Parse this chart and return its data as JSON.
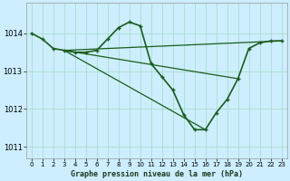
{
  "title": "Graphe pression niveau de la mer (hPa)",
  "background_color": "#cceeff",
  "grid_color": "#aaddcc",
  "line_color_dark": "#1a5c1a",
  "line_color_med": "#2d7a2d",
  "xlim": [
    -0.5,
    23.5
  ],
  "ylim": [
    1010.7,
    1014.8
  ],
  "yticks": [
    1011,
    1012,
    1013,
    1014
  ],
  "xticks": [
    0,
    1,
    2,
    3,
    4,
    5,
    6,
    7,
    8,
    9,
    10,
    11,
    12,
    13,
    14,
    15,
    16,
    17,
    18,
    19,
    20,
    21,
    22,
    23
  ],
  "curve1_x": [
    0,
    1,
    2,
    3,
    4,
    5,
    6,
    7,
    8,
    9,
    10,
    11,
    12,
    13,
    14,
    15,
    16,
    17,
    18,
    19,
    20,
    21,
    22,
    23
  ],
  "curve1_y": [
    1014.0,
    1013.85,
    1013.6,
    1013.55,
    1013.5,
    1013.5,
    1013.55,
    1013.85,
    1014.15,
    1014.3,
    1014.2,
    1013.2,
    1012.85,
    1012.5,
    1011.85,
    1011.45,
    1011.45,
    1011.9,
    1012.25,
    1012.8,
    1013.6,
    1013.75,
    1013.8,
    1013.8
  ],
  "line2_x": [
    3,
    23
  ],
  "line2_y": [
    1013.55,
    1013.8
  ],
  "line3_x": [
    3,
    19
  ],
  "line3_y": [
    1013.55,
    1012.8
  ],
  "line4_x": [
    3,
    16
  ],
  "line4_y": [
    1013.55,
    1011.45
  ]
}
